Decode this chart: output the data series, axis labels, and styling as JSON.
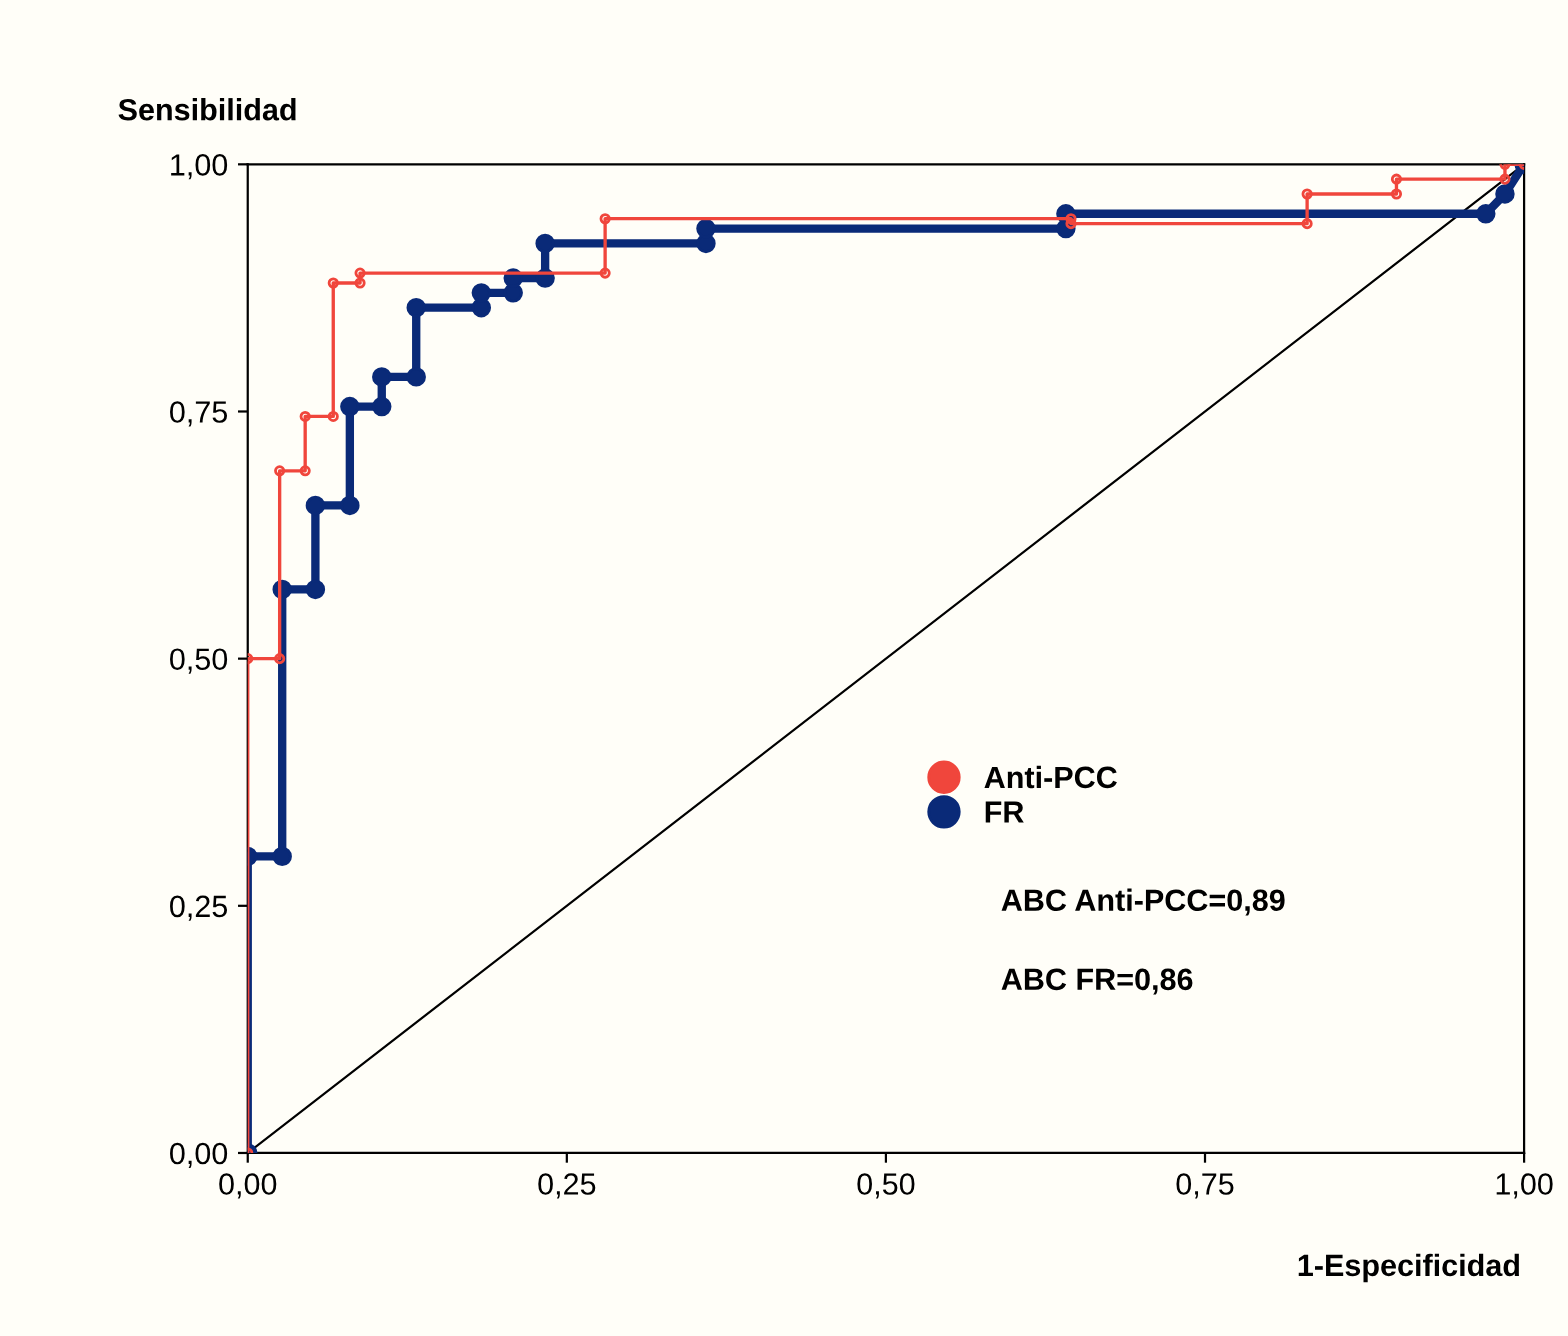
{
  "chart_data": {
    "type": "step",
    "xlabel": "1-Especificidad",
    "ylabel": "Sensibilidad",
    "xlim": [
      0,
      1
    ],
    "ylim": [
      0,
      1
    ],
    "xticks": [
      {
        "value": 0,
        "label": "0,00"
      },
      {
        "value": 0.25,
        "label": "0,25"
      },
      {
        "value": 0.5,
        "label": "0,50"
      },
      {
        "value": 0.75,
        "label": "0,75"
      },
      {
        "value": 1,
        "label": "1,00"
      }
    ],
    "yticks": [
      {
        "value": 0,
        "label": "0,00"
      },
      {
        "value": 0.25,
        "label": "0,25"
      },
      {
        "value": 0.5,
        "label": "0,50"
      },
      {
        "value": 0.75,
        "label": "0,75"
      },
      {
        "value": 1,
        "label": "1,00"
      }
    ],
    "grid": false,
    "legend": "center",
    "marker": "circle",
    "series": [
      {
        "name": "Anti-PCC",
        "color": "#f0463c",
        "x": [
          0,
          0,
          0.025,
          0.025,
          0.045,
          0.045,
          0.067,
          0.067,
          0.088,
          0.088,
          0.28,
          0.28,
          0.645,
          0.645,
          0.83,
          0.83,
          0.9,
          0.9,
          0.985,
          0.985,
          1
        ],
        "values": [
          0,
          0.5,
          0.5,
          0.69,
          0.69,
          0.745,
          0.745,
          0.88,
          0.88,
          0.89,
          0.89,
          0.945,
          0.945,
          0.94,
          0.94,
          0.97,
          0.97,
          0.985,
          0.985,
          1,
          1
        ]
      },
      {
        "name": "FR",
        "color": "#0a2a78",
        "x": [
          0,
          0,
          0.027,
          0.027,
          0.053,
          0.053,
          0.08,
          0.08,
          0.105,
          0.105,
          0.132,
          0.132,
          0.183,
          0.183,
          0.208,
          0.208,
          0.233,
          0.233,
          0.359,
          0.359,
          0.641,
          0.641,
          0.97,
          0.985,
          1
        ],
        "values": [
          0,
          0.3,
          0.3,
          0.57,
          0.57,
          0.655,
          0.655,
          0.755,
          0.755,
          0.785,
          0.785,
          0.855,
          0.855,
          0.87,
          0.87,
          0.885,
          0.885,
          0.92,
          0.92,
          0.935,
          0.935,
          0.95,
          0.95,
          0.97,
          1
        ]
      },
      {
        "type": "line",
        "marker": "none",
        "color": "#000000",
        "x": [
          0,
          1
        ],
        "values": [
          0,
          1
        ]
      }
    ],
    "annotations": [
      "ABC Anti-PCC=0,89",
      "ABC FR=0,86"
    ]
  }
}
